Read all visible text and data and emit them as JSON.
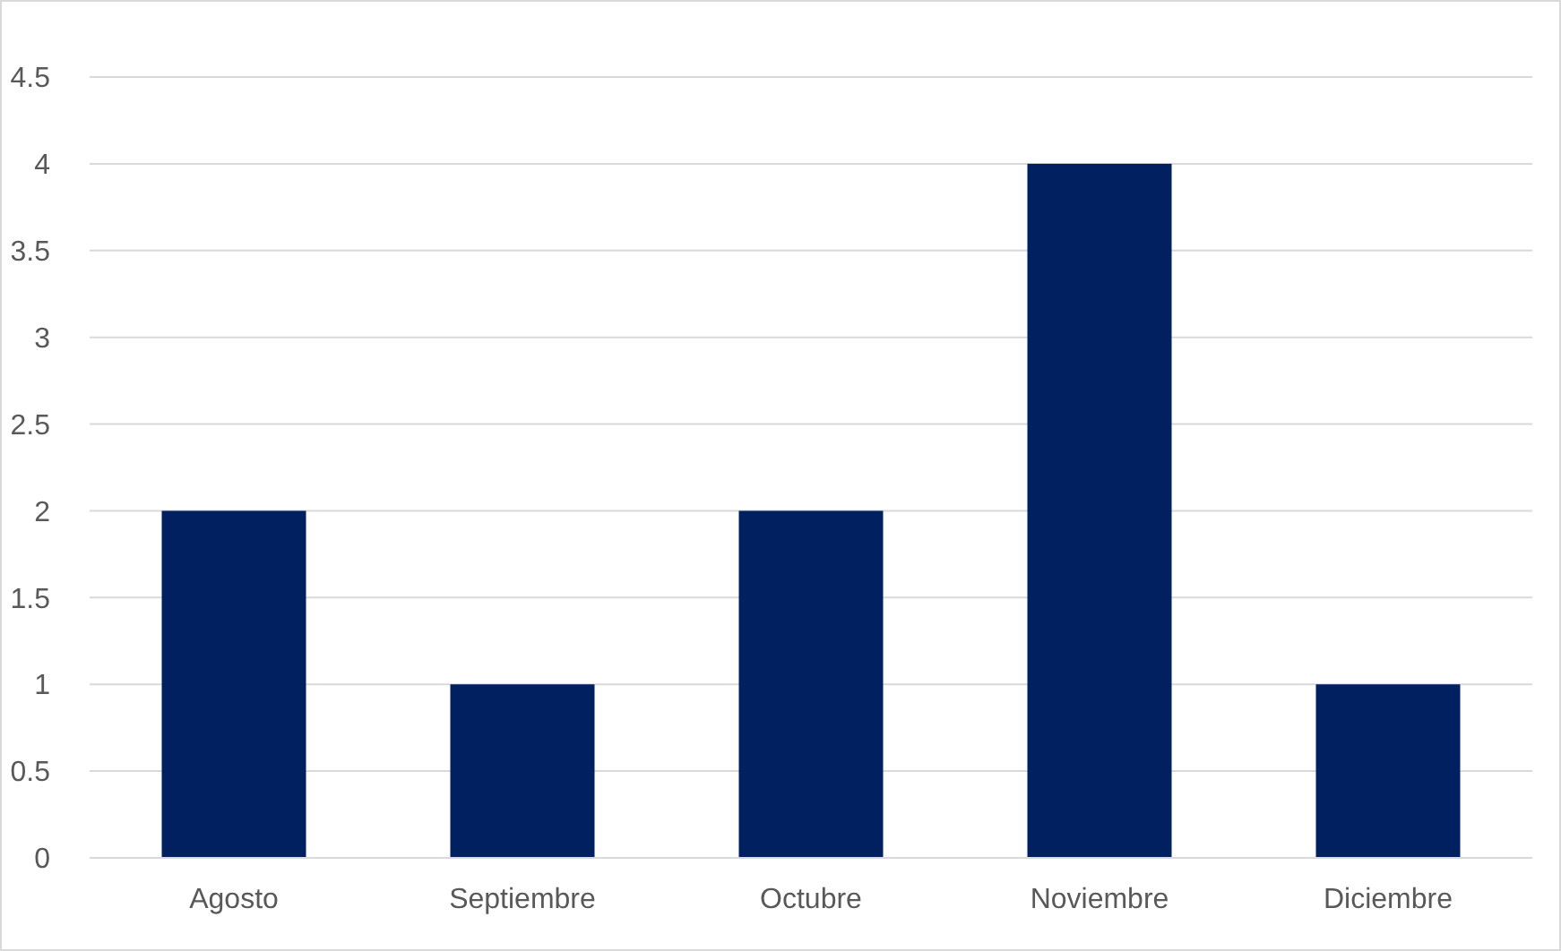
{
  "chart_data": {
    "type": "bar",
    "categories": [
      "Agosto",
      "Septiembre",
      "Octubre",
      "Noviembre",
      "Diciembre"
    ],
    "values": [
      2,
      1,
      2,
      4,
      1
    ],
    "color": "#002060",
    "ylim": [
      0,
      4.5
    ],
    "yticks": [
      0,
      0.5,
      1,
      1.5,
      2,
      2.5,
      3,
      3.5,
      4,
      4.5
    ],
    "grid": "y"
  }
}
